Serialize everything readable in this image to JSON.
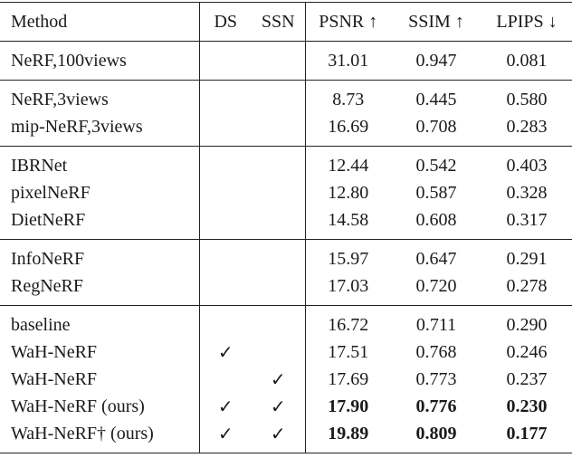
{
  "table": {
    "header": [
      "Method",
      "DS",
      "SSN",
      "PSNR ↑",
      "SSIM ↑",
      "LPIPS ↓"
    ],
    "groups": [
      [
        {
          "method": "NeRF,100views",
          "psnr": "31.01",
          "ssim": "0.947",
          "lpips": "0.081"
        }
      ],
      [
        {
          "method": "NeRF,3views",
          "psnr": "8.73",
          "ssim": "0.445",
          "lpips": "0.580"
        },
        {
          "method": "mip-NeRF,3views",
          "psnr": "16.69",
          "ssim": "0.708",
          "lpips": "0.283"
        }
      ],
      [
        {
          "method": "IBRNet",
          "psnr": "12.44",
          "ssim": "0.542",
          "lpips": "0.403"
        },
        {
          "method": "pixelNeRF",
          "psnr": "12.80",
          "ssim": "0.587",
          "lpips": "0.328"
        },
        {
          "method": "DietNeRF",
          "psnr": "14.58",
          "ssim": "0.608",
          "lpips": "0.317"
        }
      ],
      [
        {
          "method": "InfoNeRF",
          "psnr": "15.97",
          "ssim": "0.647",
          "lpips": "0.291"
        },
        {
          "method": "RegNeRF",
          "psnr": "17.03",
          "ssim": "0.720",
          "lpips": "0.278"
        }
      ],
      [
        {
          "method": "baseline",
          "psnr": "16.72",
          "ssim": "0.711",
          "lpips": "0.290"
        },
        {
          "method": "WaH-NeRF",
          "ds": "✓",
          "psnr": "17.51",
          "ssim": "0.768",
          "lpips": "0.246"
        },
        {
          "method": "WaH-NeRF",
          "ssn": "✓",
          "psnr": "17.69",
          "ssim": "0.773",
          "lpips": "0.237"
        },
        {
          "method": "WaH-NeRF (ours)",
          "ds": "✓",
          "ssn": "✓",
          "psnr": "17.90",
          "ssim": "0.776",
          "lpips": "0.230",
          "bold": true
        },
        {
          "method": "WaH-NeRF† (ours)",
          "ds": "✓",
          "ssn": "✓",
          "psnr": "19.89",
          "ssim": "0.809",
          "lpips": "0.177",
          "bold": true
        }
      ]
    ]
  }
}
